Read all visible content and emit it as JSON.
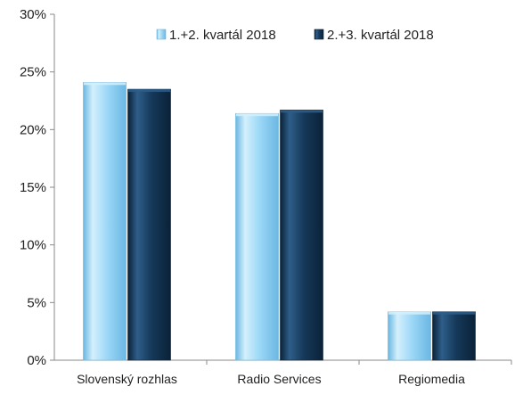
{
  "chart_data": {
    "type": "bar",
    "title": "",
    "xlabel": "",
    "ylabel": "",
    "categories": [
      "Slovenský rozhlas",
      "Radio Services",
      "Regiomedia"
    ],
    "series": [
      {
        "name": "1.+2. kvartál 2018",
        "values": [
          24.1,
          21.4,
          4.2
        ],
        "color": "#9DD8F7",
        "highlight": "#D4F0FC",
        "shade": "#6BB7E3"
      },
      {
        "name": "2.+3. kvartál 2018",
        "values": [
          23.5,
          21.7,
          4.2
        ],
        "color": "#16395A",
        "highlight": "#2E5E89",
        "shade": "#0A2238"
      }
    ],
    "ylim": [
      0,
      30
    ],
    "yticks": [
      0,
      5,
      10,
      15,
      20,
      25,
      30
    ],
    "ytick_labels": [
      "0%",
      "5%",
      "10%",
      "15%",
      "20%",
      "25%",
      "30%"
    ],
    "grid": false,
    "legend_position": "top-right",
    "axis_color": "#8A8A8A"
  }
}
